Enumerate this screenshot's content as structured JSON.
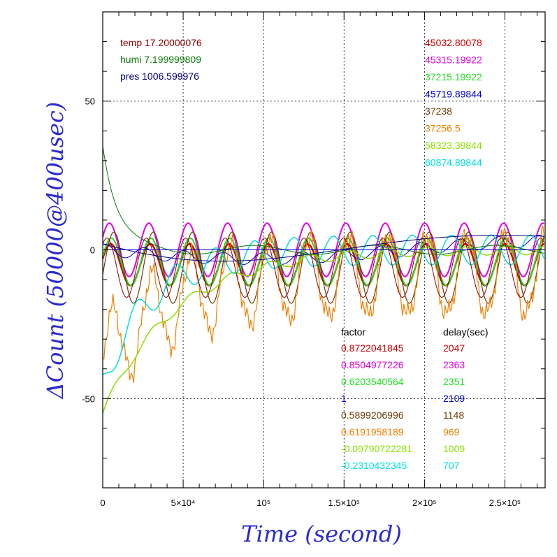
{
  "chart_data": {
    "type": "line",
    "xlabel": "Time (second)",
    "ylabel": "ΔCount (50000@400usec)",
    "xlim": [
      0,
      275000
    ],
    "ylim": [
      -80,
      80
    ],
    "x_ticks": [
      {
        "value": 0,
        "label": "0"
      },
      {
        "value": 50000,
        "label": "5×10⁴"
      },
      {
        "value": 100000,
        "label": "10⁵"
      },
      {
        "value": 150000,
        "label": "1.5×10⁵"
      },
      {
        "value": 200000,
        "label": "2×10⁵"
      },
      {
        "value": 250000,
        "label": "2.5×10⁵"
      }
    ],
    "y_ticks": [
      {
        "value": 50,
        "label": "50"
      },
      {
        "value": 0,
        "label": "0"
      },
      {
        "value": -50,
        "label": "-50"
      }
    ],
    "grid": true,
    "env": [
      {
        "text": "temp 17.20000076",
        "color": "#8b0000"
      },
      {
        "text": "humi 7.199999809",
        "color": "#0a7a0a"
      },
      {
        "text": "pres 1006.599976",
        "color": "#000080"
      }
    ],
    "baselines": [
      {
        "text": "45032.80078",
        "color": "#cc0000"
      },
      {
        "text": "45315.19922",
        "color": "#e000e0"
      },
      {
        "text": "37215.19922",
        "color": "#22dd22"
      },
      {
        "text": "45719.89844",
        "color": "#0000cc"
      },
      {
        "text": "37238",
        "color": "#6b3a0a"
      },
      {
        "text": "37256.5",
        "color": "#ee8000"
      },
      {
        "text": "58323.39844",
        "color": "#88e000"
      },
      {
        "text": "60874.89844",
        "color": "#00e0e0"
      }
    ],
    "factor_header": "factor",
    "delay_header": "delay(sec)",
    "series": [
      {
        "color": "#cc0000",
        "factor": "0.8722041845",
        "delay": "2047"
      },
      {
        "color": "#e000e0",
        "factor": "0.8504977226",
        "delay": "2363"
      },
      {
        "color": "#22dd22",
        "factor": "0.6203540564",
        "delay": "2351"
      },
      {
        "color": "#0000cc",
        "factor": "1",
        "delay": "2109"
      },
      {
        "color": "#6b3a0a",
        "factor": "0.5899206996",
        "delay": "1148"
      },
      {
        "color": "#ee8000",
        "factor": "0.6191958189",
        "delay": "969"
      },
      {
        "color": "#88e000",
        "factor": "-0.09790722281",
        "delay": "1009"
      },
      {
        "color": "#00e0e0",
        "factor": "-0.2310432345",
        "delay": "707"
      }
    ],
    "extra_series": [
      {
        "color": "#0a7a0a"
      },
      {
        "color": "#000080"
      },
      {
        "color": "#8b0000"
      }
    ]
  }
}
